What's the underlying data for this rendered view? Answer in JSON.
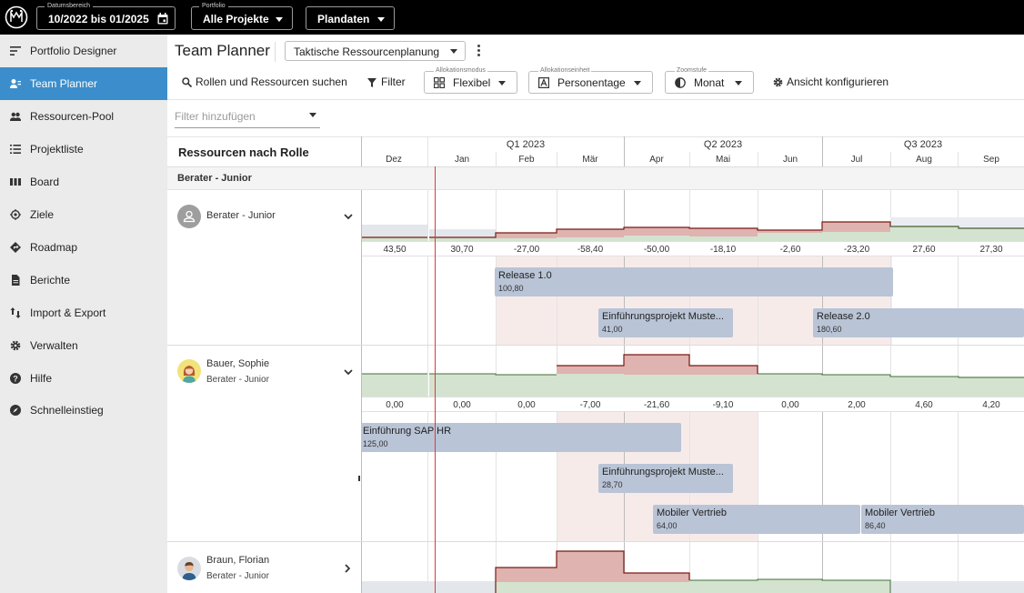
{
  "topbar": {
    "date_range": {
      "label": "Datumsbereich",
      "value": "10/2022 bis 01/2025"
    },
    "portfolio": {
      "label": "Portfolio",
      "value": "Alle Projekte"
    },
    "data_mode": {
      "value": "Plandaten"
    }
  },
  "sidebar": {
    "items": [
      {
        "label": "Portfolio Designer",
        "icon": "portfolio-designer-icon"
      },
      {
        "label": "Team Planner",
        "icon": "team-planner-icon",
        "active": true
      },
      {
        "label": "Ressourcen-Pool",
        "icon": "people-icon"
      },
      {
        "label": "Projektliste",
        "icon": "list-icon"
      },
      {
        "label": "Board",
        "icon": "board-icon"
      },
      {
        "label": "Ziele",
        "icon": "target-icon"
      },
      {
        "label": "Roadmap",
        "icon": "roadmap-icon"
      },
      {
        "label": "Berichte",
        "icon": "report-icon"
      },
      {
        "label": "Import & Export",
        "icon": "import-export-icon"
      },
      {
        "label": "Verwalten",
        "icon": "gear-icon"
      },
      {
        "label": "Hilfe",
        "icon": "help-icon"
      },
      {
        "label": "Schnelleinstieg",
        "icon": "compass-icon"
      }
    ]
  },
  "header": {
    "title": "Team Planner",
    "view": "Taktische Ressourcenplanung"
  },
  "toolbar": {
    "search_label": "Rollen und Ressourcen suchen",
    "filter_label": "Filter",
    "allocation_mode": {
      "label": "Allokationsmodus",
      "value": "Flexibel"
    },
    "allocation_unit": {
      "label": "Allokationseinheit",
      "value": "Personentage"
    },
    "zoom": {
      "label": "Zoomstufe",
      "value": "Monat"
    },
    "configure_label": "Ansicht konfigurieren"
  },
  "filter_add": {
    "placeholder": "Filter hinzufügen"
  },
  "grid": {
    "left_header": "Ressourcen nach Rolle",
    "quarters": [
      "Q1 2023",
      "Q2 2023",
      "Q3 2023"
    ],
    "months": [
      "Dez",
      "Jan",
      "Feb",
      "Mär",
      "Apr",
      "Mai",
      "Jun",
      "Jul",
      "Aug",
      "Sep"
    ],
    "group_label": "Berater - Junior",
    "resources": [
      {
        "name": "Berater - Junior",
        "role": "",
        "values": [
          "43,50",
          "30,70",
          "-27,00",
          "-58,40",
          "-50,00",
          "-18,10",
          "-2,60",
          "-23,20",
          "27,60",
          "27,30"
        ],
        "bars": [
          {
            "name": "Release 1.0",
            "value": "100,80"
          },
          {
            "name": "Einführungsprojekt Muste...",
            "value": "41,00"
          },
          {
            "name": "Release 2.0",
            "value": "180,60"
          }
        ]
      },
      {
        "name": "Bauer, Sophie",
        "role": "Berater - Junior",
        "values": [
          "0,00",
          "0,00",
          "0,00",
          "-7,00",
          "-21,60",
          "-9,10",
          "0,00",
          "2,00",
          "4,60",
          "4,20"
        ],
        "bars": [
          {
            "name": "Einführung SAP HR",
            "value": "125,00"
          },
          {
            "name": "Einführungsprojekt Muste...",
            "value": "28,70"
          },
          {
            "name": "Mobiler Vertrieb",
            "value": "64,00"
          },
          {
            "name": "Mobiler Vertrieb",
            "value": "86,40"
          }
        ]
      },
      {
        "name": "Braun, Florian",
        "role": "Berater - Junior"
      }
    ]
  },
  "colors": {
    "active_nav": "#3b8ecb",
    "over_allocation": "#e2b6b2",
    "under_allocation": "#d4e3cf",
    "bar": "#b9c4d6",
    "today": "#e03a3a"
  }
}
